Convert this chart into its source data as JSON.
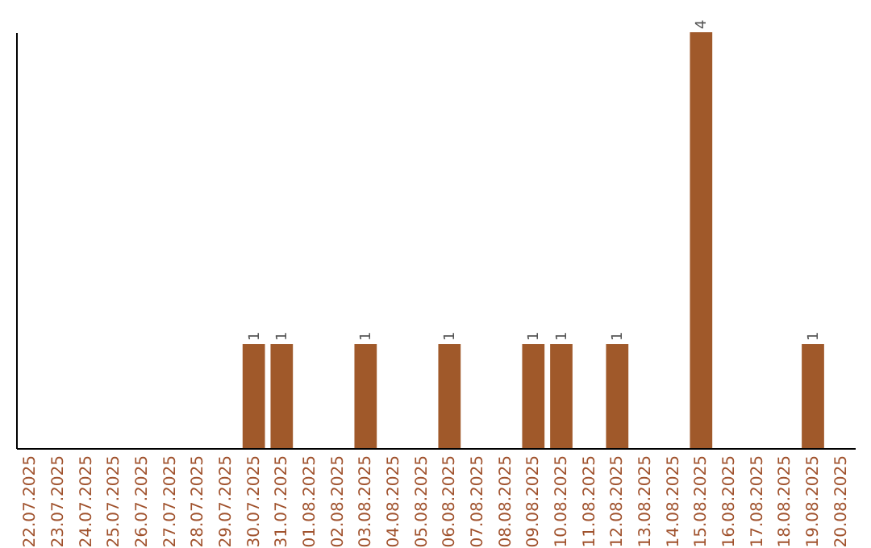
{
  "chart_data": {
    "type": "bar",
    "categories": [
      "22.07.2025",
      "23.07.2025",
      "24.07.2025",
      "25.07.2025",
      "26.07.2025",
      "27.07.2025",
      "28.07.2025",
      "29.07.2025",
      "30.07.2025",
      "31.07.2025",
      "01.08.2025",
      "02.08.2025",
      "03.08.2025",
      "04.08.2025",
      "05.08.2025",
      "06.08.2025",
      "07.08.2025",
      "08.08.2025",
      "09.08.2025",
      "10.08.2025",
      "11.08.2025",
      "12.08.2025",
      "13.08.2025",
      "14.08.2025",
      "15.08.2025",
      "16.08.2025",
      "17.08.2025",
      "18.08.2025",
      "19.08.2025",
      "20.08.2025"
    ],
    "values": [
      0,
      0,
      0,
      0,
      0,
      0,
      0,
      0,
      1,
      1,
      0,
      0,
      1,
      0,
      0,
      1,
      0,
      0,
      1,
      1,
      0,
      1,
      0,
      0,
      4,
      0,
      0,
      0,
      1,
      0
    ],
    "value_labels": [
      null,
      null,
      null,
      null,
      null,
      null,
      null,
      null,
      "1",
      "1",
      null,
      null,
      "1",
      null,
      null,
      "1",
      null,
      null,
      "1",
      "1",
      null,
      "1",
      null,
      null,
      "4",
      null,
      null,
      null,
      "1",
      null
    ],
    "color": "#a0592a"
  }
}
